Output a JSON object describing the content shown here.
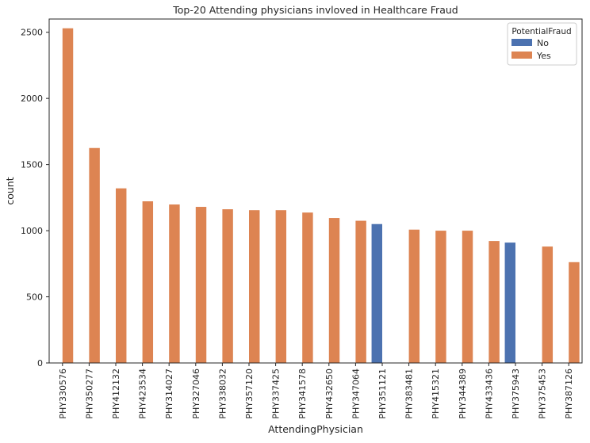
{
  "chart_data": {
    "type": "bar",
    "title": "Top-20 Attending physicians invloved in Healthcare Fraud",
    "xlabel": "AttendingPhysician",
    "ylabel": "count",
    "ylim": [
      0,
      2600
    ],
    "yticks": [
      0,
      500,
      1000,
      1500,
      2000,
      2500
    ],
    "grid": false,
    "legend": {
      "title": "PotentialFraud",
      "placement": "top-right",
      "entries": [
        {
          "label": "No",
          "color": "#4c72b0"
        },
        {
          "label": "Yes",
          "color": "#dd8452"
        }
      ]
    },
    "categories": [
      "PHY330576",
      "PHY350277",
      "PHY412132",
      "PHY423534",
      "PHY314027",
      "PHY327046",
      "PHY338032",
      "PHY357120",
      "PHY337425",
      "PHY341578",
      "PHY432650",
      "PHY347064",
      "PHY351121",
      "PHY383481",
      "PHY415321",
      "PHY344389",
      "PHY433436",
      "PHY375943",
      "PHY375453",
      "PHY387126"
    ],
    "series": [
      {
        "name": "No",
        "color": "#4c72b0",
        "values": [
          null,
          null,
          null,
          null,
          null,
          null,
          null,
          null,
          null,
          null,
          null,
          null,
          1050,
          null,
          null,
          null,
          null,
          910,
          null,
          null
        ]
      },
      {
        "name": "Yes",
        "color": "#dd8452",
        "values": [
          2530,
          1625,
          1320,
          1222,
          1198,
          1180,
          1162,
          1155,
          1155,
          1137,
          1096,
          1075,
          null,
          1008,
          1000,
          1000,
          922,
          null,
          880,
          762
        ]
      }
    ]
  }
}
